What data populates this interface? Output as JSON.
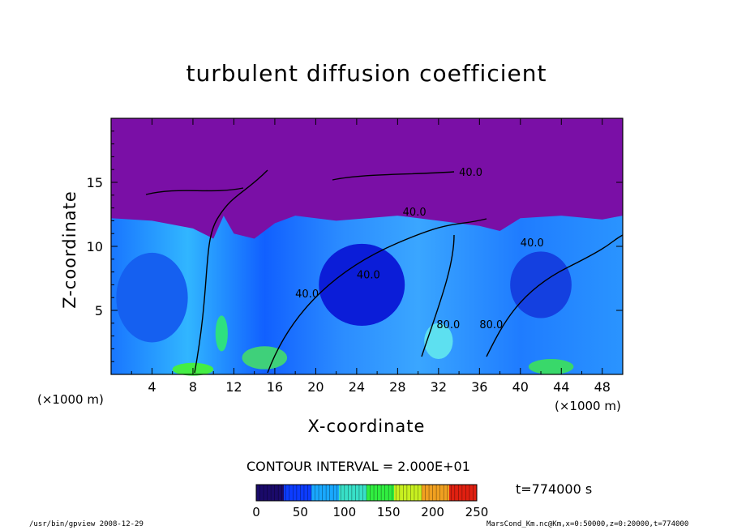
{
  "chart_data": {
    "type": "heatmap",
    "title": "turbulent diffusion coefficient",
    "xlabel": "X-coordinate",
    "ylabel": "Z-coordinate",
    "x_unit_left": "(×1000 m)",
    "x_unit_right": "(×1000 m)",
    "xlim": [
      0,
      50
    ],
    "ylim": [
      0,
      20
    ],
    "x_ticks": [
      4,
      8,
      12,
      16,
      20,
      24,
      28,
      32,
      36,
      40,
      44,
      48
    ],
    "y_ticks": [
      5,
      10,
      15
    ],
    "contour_interval_text": "CONTOUR INTERVAL = 2.000E+01",
    "contour_labels": [
      "40.0",
      "40.0",
      "40.0",
      "80.0",
      "80.0",
      "40.0",
      "40.0"
    ],
    "colorbar": {
      "range": [
        0,
        250
      ],
      "ticks": [
        0,
        50,
        100,
        150,
        200,
        250
      ],
      "colors": [
        "#1a0a6a",
        "#0c3cff",
        "#19a8ff",
        "#38e0c8",
        "#30ee40",
        "#c8f020",
        "#f0a020",
        "#e02010"
      ]
    },
    "time_label": "t=774000 s",
    "background_color": "#7a0fa6"
  },
  "footer": {
    "left": "/usr/bin/gpview   2008-12-29",
    "right": "MarsCond_Km.nc@Km,x=0:50000,z=0:20000,t=774000"
  }
}
